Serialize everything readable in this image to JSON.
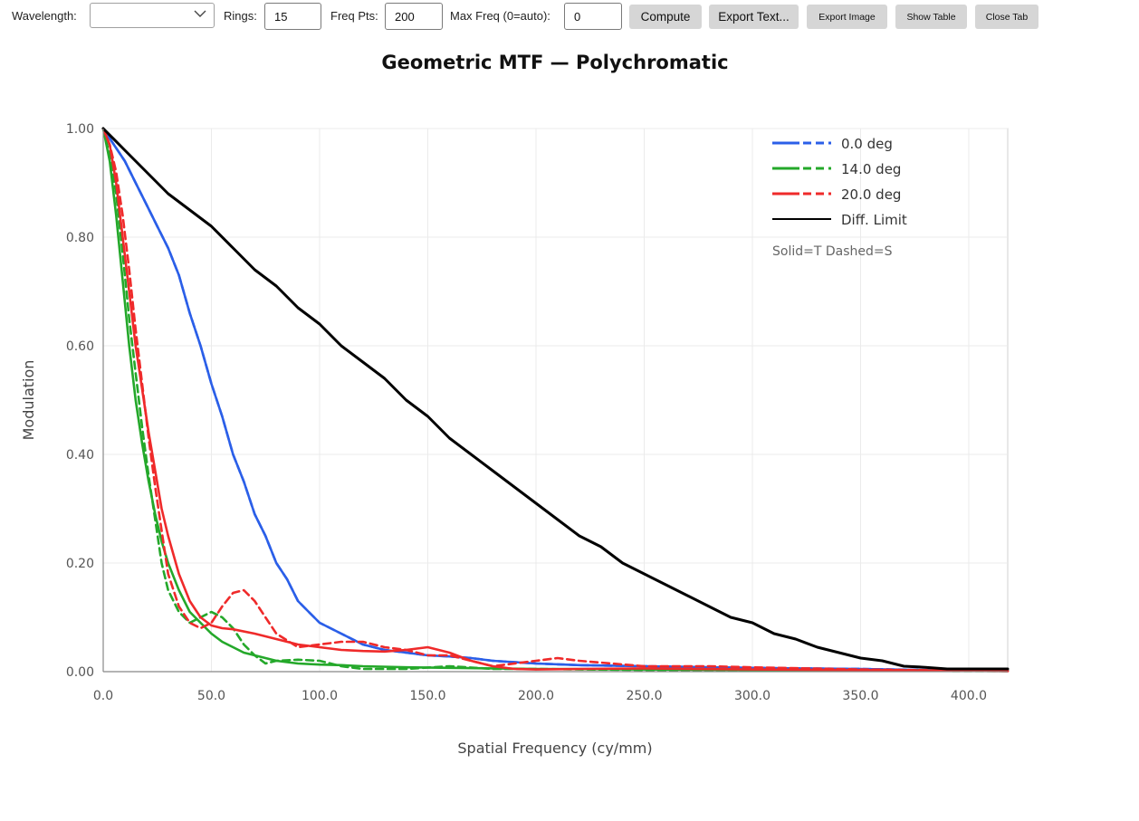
{
  "toolbar": {
    "wavelength_label": "Wavelength:",
    "wavelength_value": "",
    "rings_label": "Rings:",
    "rings_value": "15",
    "freq_pts_label": "Freq Pts:",
    "freq_pts_value": "200",
    "max_freq_label": "Max Freq (0=auto):",
    "max_freq_value": "0",
    "compute_label": "Compute",
    "export_text_label": "Export Text...",
    "export_image_label": "Export Image",
    "show_table_label": "Show Table",
    "close_tab_label": "Close Tab"
  },
  "colors": {
    "blue": "#2b5fe8",
    "green": "#24a82a",
    "red": "#ef2a2a",
    "black": "#000000",
    "grid": "#ebebeb",
    "button_bg": "#d6d6d6"
  },
  "chart_data": {
    "type": "line",
    "title": "Geometric MTF — Polychromatic",
    "xlabel": "Spatial Frequency (cy/mm)",
    "ylabel": "Modulation",
    "xlim": [
      0,
      418
    ],
    "ylim": [
      0,
      1.0
    ],
    "xticks": [
      "0.0",
      "50.0",
      "100.0",
      "150.0",
      "200.0",
      "250.0",
      "300.0",
      "350.0",
      "400.0"
    ],
    "yticks": [
      "0.00",
      "0.20",
      "0.40",
      "0.60",
      "0.80",
      "1.00"
    ],
    "grid": true,
    "legend_position": "top-right",
    "legend_note": "Solid=T Dashed=S",
    "legend": [
      {
        "label": "0.0 deg",
        "color": "#2b5fe8",
        "style": "solid-dashed"
      },
      {
        "label": "14.0 deg",
        "color": "#24a82a",
        "style": "solid-dashed"
      },
      {
        "label": "20.0 deg",
        "color": "#ef2a2a",
        "style": "solid-dashed"
      },
      {
        "label": "Diff. Limit",
        "color": "#000000",
        "style": "solid"
      }
    ],
    "series": [
      {
        "name": "0.0 deg",
        "mode": "T",
        "color": "#2b5fe8",
        "dash": false,
        "x": [
          0,
          5,
          10,
          15,
          20,
          25,
          30,
          35,
          40,
          45,
          50,
          55,
          60,
          65,
          70,
          75,
          80,
          85,
          90,
          95,
          100,
          110,
          120,
          130,
          140,
          150,
          160,
          170,
          180,
          200,
          220,
          250,
          280,
          300,
          320,
          350,
          380,
          418
        ],
        "y": [
          1.0,
          0.97,
          0.94,
          0.9,
          0.86,
          0.82,
          0.78,
          0.73,
          0.66,
          0.6,
          0.53,
          0.47,
          0.4,
          0.35,
          0.29,
          0.25,
          0.2,
          0.17,
          0.13,
          0.11,
          0.09,
          0.07,
          0.05,
          0.04,
          0.035,
          0.03,
          0.028,
          0.025,
          0.02,
          0.015,
          0.012,
          0.01,
          0.008,
          0.007,
          0.006,
          0.005,
          0.003,
          0.002
        ]
      },
      {
        "name": "0.0 deg",
        "mode": "S",
        "color": "#2b5fe8",
        "dash": true,
        "x": [
          0,
          5,
          10,
          15,
          20,
          25,
          30,
          35,
          40,
          45,
          50,
          55,
          60,
          65,
          70,
          75,
          80,
          85,
          90,
          95,
          100,
          110,
          120,
          130,
          140,
          150,
          160,
          170,
          180,
          200,
          220,
          250,
          280,
          300,
          320,
          350,
          380,
          418
        ],
        "y": [
          1.0,
          0.97,
          0.94,
          0.9,
          0.86,
          0.82,
          0.78,
          0.73,
          0.66,
          0.6,
          0.53,
          0.47,
          0.4,
          0.35,
          0.29,
          0.25,
          0.2,
          0.17,
          0.13,
          0.11,
          0.09,
          0.07,
          0.05,
          0.04,
          0.035,
          0.03,
          0.028,
          0.025,
          0.02,
          0.015,
          0.012,
          0.01,
          0.008,
          0.007,
          0.006,
          0.005,
          0.003,
          0.002
        ]
      },
      {
        "name": "14.0 deg",
        "mode": "T",
        "color": "#24a82a",
        "dash": false,
        "x": [
          0,
          3,
          6,
          9,
          12,
          15,
          18,
          21,
          24,
          27,
          30,
          35,
          40,
          45,
          50,
          55,
          60,
          65,
          70,
          80,
          90,
          100,
          110,
          120,
          140,
          160,
          180,
          200,
          250,
          300,
          418
        ],
        "y": [
          1.0,
          0.94,
          0.84,
          0.72,
          0.6,
          0.5,
          0.42,
          0.35,
          0.29,
          0.24,
          0.2,
          0.15,
          0.11,
          0.09,
          0.07,
          0.055,
          0.045,
          0.035,
          0.03,
          0.02,
          0.015,
          0.013,
          0.012,
          0.01,
          0.008,
          0.007,
          0.006,
          0.005,
          0.004,
          0.003,
          0.002
        ]
      },
      {
        "name": "14.0 deg",
        "mode": "S",
        "color": "#24a82a",
        "dash": true,
        "x": [
          0,
          3,
          6,
          9,
          12,
          15,
          18,
          21,
          24,
          27,
          30,
          35,
          40,
          45,
          50,
          55,
          60,
          65,
          70,
          75,
          80,
          90,
          100,
          110,
          120,
          140,
          160,
          180,
          200,
          250,
          300,
          418
        ],
        "y": [
          1.0,
          0.95,
          0.88,
          0.77,
          0.65,
          0.55,
          0.45,
          0.36,
          0.28,
          0.2,
          0.15,
          0.11,
          0.09,
          0.1,
          0.11,
          0.1,
          0.08,
          0.05,
          0.03,
          0.015,
          0.02,
          0.022,
          0.02,
          0.01,
          0.005,
          0.005,
          0.01,
          0.005,
          0.005,
          0.003,
          0.002,
          0.001
        ]
      },
      {
        "name": "20.0 deg",
        "mode": "T",
        "color": "#ef2a2a",
        "dash": false,
        "x": [
          0,
          3,
          6,
          9,
          12,
          15,
          18,
          21,
          24,
          27,
          30,
          35,
          40,
          45,
          50,
          55,
          60,
          70,
          80,
          90,
          100,
          110,
          120,
          130,
          140,
          150,
          160,
          170,
          180,
          190,
          200,
          220,
          250,
          300,
          350,
          418
        ],
        "y": [
          1.0,
          0.97,
          0.9,
          0.8,
          0.7,
          0.6,
          0.52,
          0.44,
          0.37,
          0.3,
          0.25,
          0.18,
          0.13,
          0.1,
          0.085,
          0.08,
          0.078,
          0.07,
          0.06,
          0.05,
          0.045,
          0.04,
          0.038,
          0.037,
          0.04,
          0.045,
          0.035,
          0.02,
          0.01,
          0.005,
          0.004,
          0.005,
          0.006,
          0.004,
          0.003,
          0.001
        ]
      },
      {
        "name": "20.0 deg",
        "mode": "S",
        "color": "#ef2a2a",
        "dash": true,
        "x": [
          0,
          3,
          6,
          9,
          12,
          15,
          18,
          21,
          24,
          27,
          30,
          35,
          40,
          45,
          50,
          55,
          60,
          65,
          70,
          75,
          80,
          90,
          100,
          110,
          120,
          130,
          140,
          150,
          160,
          170,
          180,
          200,
          210,
          220,
          250,
          280,
          300,
          350,
          418
        ],
        "y": [
          1.0,
          0.97,
          0.92,
          0.84,
          0.74,
          0.63,
          0.53,
          0.43,
          0.34,
          0.26,
          0.18,
          0.12,
          0.09,
          0.08,
          0.09,
          0.12,
          0.145,
          0.15,
          0.13,
          0.1,
          0.07,
          0.045,
          0.05,
          0.055,
          0.055,
          0.045,
          0.04,
          0.03,
          0.03,
          0.02,
          0.01,
          0.02,
          0.025,
          0.02,
          0.01,
          0.01,
          0.008,
          0.004,
          0.001
        ]
      },
      {
        "name": "Diff. Limit",
        "mode": "",
        "color": "#000000",
        "dash": false,
        "x": [
          0,
          10,
          20,
          30,
          40,
          50,
          60,
          70,
          80,
          90,
          100,
          110,
          120,
          130,
          140,
          150,
          160,
          170,
          180,
          190,
          200,
          210,
          220,
          230,
          240,
          250,
          260,
          270,
          280,
          290,
          300,
          310,
          320,
          330,
          340,
          350,
          360,
          370,
          380,
          390,
          400,
          418
        ],
        "y": [
          1.0,
          0.96,
          0.92,
          0.88,
          0.85,
          0.82,
          0.78,
          0.74,
          0.71,
          0.67,
          0.64,
          0.6,
          0.57,
          0.54,
          0.5,
          0.47,
          0.43,
          0.4,
          0.37,
          0.34,
          0.31,
          0.28,
          0.25,
          0.23,
          0.2,
          0.18,
          0.16,
          0.14,
          0.12,
          0.1,
          0.09,
          0.07,
          0.06,
          0.045,
          0.035,
          0.025,
          0.02,
          0.01,
          0.008,
          0.005,
          0.005,
          0.005
        ]
      }
    ]
  }
}
